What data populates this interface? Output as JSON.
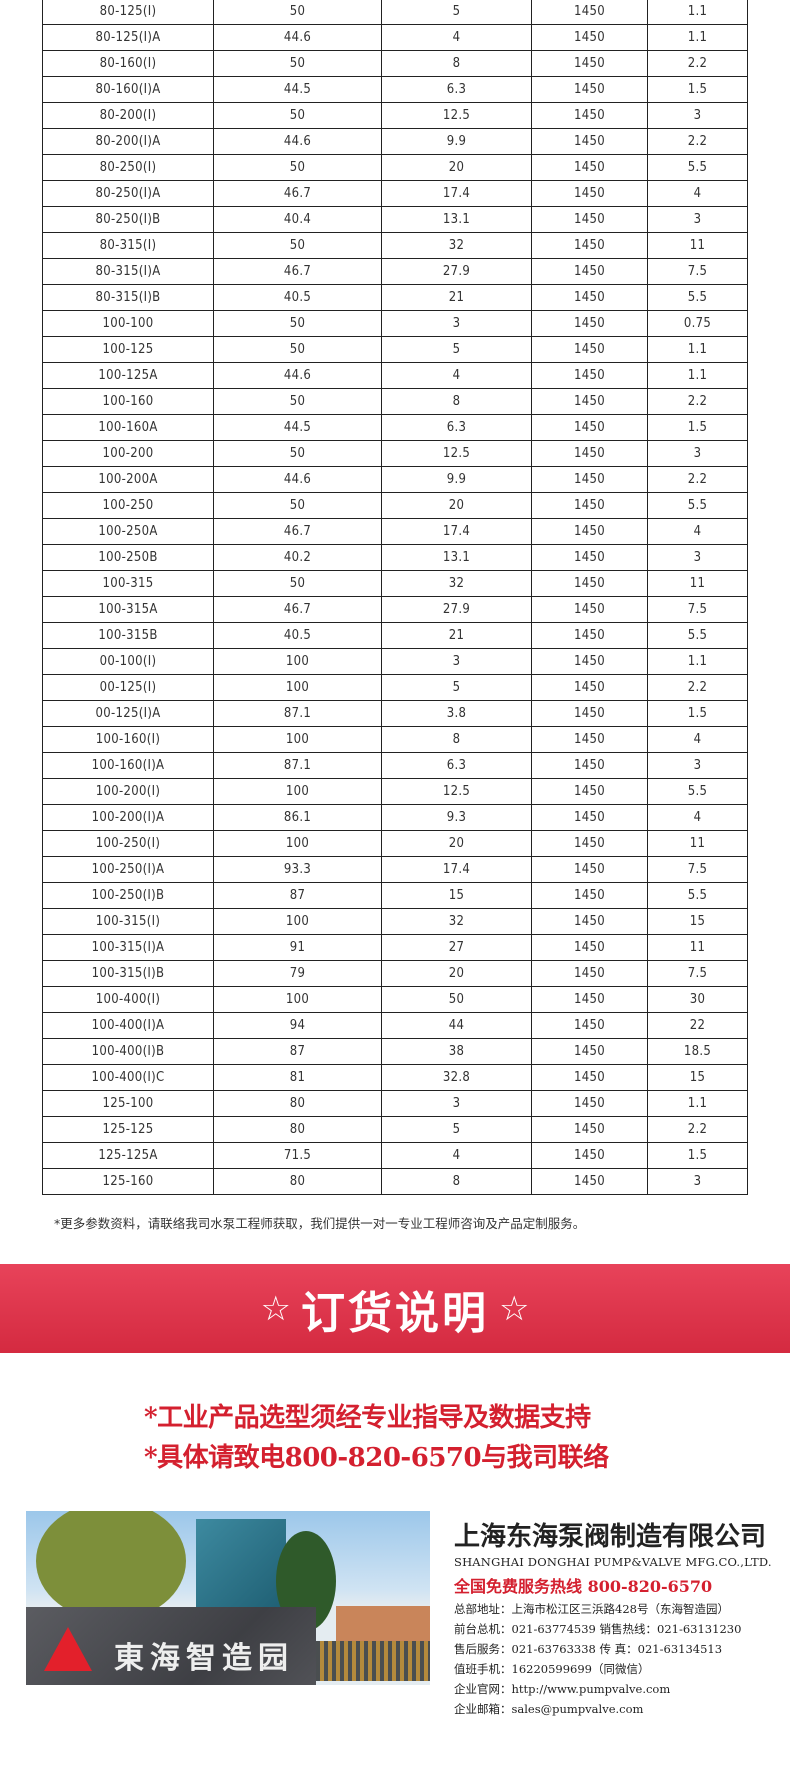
{
  "table": {
    "rows": [
      [
        "80-125(Ⅰ)",
        "50",
        "5",
        "1450",
        "1.1"
      ],
      [
        "80-125(Ⅰ)A",
        "44.6",
        "4",
        "1450",
        "1.1"
      ],
      [
        "80-160(Ⅰ)",
        "50",
        "8",
        "1450",
        "2.2"
      ],
      [
        "80-160(Ⅰ)A",
        "44.5",
        "6.3",
        "1450",
        "1.5"
      ],
      [
        "80-200(Ⅰ)",
        "50",
        "12.5",
        "1450",
        "3"
      ],
      [
        "80-200(Ⅰ)A",
        "44.6",
        "9.9",
        "1450",
        "2.2"
      ],
      [
        "80-250(Ⅰ)",
        "50",
        "20",
        "1450",
        "5.5"
      ],
      [
        "80-250(Ⅰ)A",
        "46.7",
        "17.4",
        "1450",
        "4"
      ],
      [
        "80-250(Ⅰ)B",
        "40.4",
        "13.1",
        "1450",
        "3"
      ],
      [
        "80-315(Ⅰ)",
        "50",
        "32",
        "1450",
        "11"
      ],
      [
        "80-315(Ⅰ)A",
        "46.7",
        "27.9",
        "1450",
        "7.5"
      ],
      [
        "80-315(Ⅰ)B",
        "40.5",
        "21",
        "1450",
        "5.5"
      ],
      [
        "100-100",
        "50",
        "3",
        "1450",
        "0.75"
      ],
      [
        "100-125",
        "50",
        "5",
        "1450",
        "1.1"
      ],
      [
        "100-125A",
        "44.6",
        "4",
        "1450",
        "1.1"
      ],
      [
        "100-160",
        "50",
        "8",
        "1450",
        "2.2"
      ],
      [
        "100-160A",
        "44.5",
        "6.3",
        "1450",
        "1.5"
      ],
      [
        "100-200",
        "50",
        "12.5",
        "1450",
        "3"
      ],
      [
        "100-200A",
        "44.6",
        "9.9",
        "1450",
        "2.2"
      ],
      [
        "100-250",
        "50",
        "20",
        "1450",
        "5.5"
      ],
      [
        "100-250A",
        "46.7",
        "17.4",
        "1450",
        "4"
      ],
      [
        "100-250B",
        "40.2",
        "13.1",
        "1450",
        "3"
      ],
      [
        "100-315",
        "50",
        "32",
        "1450",
        "11"
      ],
      [
        "100-315A",
        "46.7",
        "27.9",
        "1450",
        "7.5"
      ],
      [
        "100-315B",
        "40.5",
        "21",
        "1450",
        "5.5"
      ],
      [
        "00-100(Ⅰ)",
        "100",
        "3",
        "1450",
        "1.1"
      ],
      [
        "00-125(Ⅰ)",
        "100",
        "5",
        "1450",
        "2.2"
      ],
      [
        "00-125(Ⅰ)A",
        "87.1",
        "3.8",
        "1450",
        "1.5"
      ],
      [
        "100-160(Ⅰ)",
        "100",
        "8",
        "1450",
        "4"
      ],
      [
        "100-160(Ⅰ)A",
        "87.1",
        "6.3",
        "1450",
        "3"
      ],
      [
        "100-200(Ⅰ)",
        "100",
        "12.5",
        "1450",
        "5.5"
      ],
      [
        "100-200(Ⅰ)A",
        "86.1",
        "9.3",
        "1450",
        "4"
      ],
      [
        "100-250(Ⅰ)",
        "100",
        "20",
        "1450",
        "11"
      ],
      [
        "100-250(Ⅰ)A",
        "93.3",
        "17.4",
        "1450",
        "7.5"
      ],
      [
        "100-250(Ⅰ)B",
        "87",
        "15",
        "1450",
        "5.5"
      ],
      [
        "100-315(Ⅰ)",
        "100",
        "32",
        "1450",
        "15"
      ],
      [
        "100-315(Ⅰ)A",
        "91",
        "27",
        "1450",
        "11"
      ],
      [
        "100-315(Ⅰ)B",
        "79",
        "20",
        "1450",
        "7.5"
      ],
      [
        "100-400(Ⅰ)",
        "100",
        "50",
        "1450",
        "30"
      ],
      [
        "100-400(Ⅰ)A",
        "94",
        "44",
        "1450",
        "22"
      ],
      [
        "100-400(Ⅰ)B",
        "87",
        "38",
        "1450",
        "18.5"
      ],
      [
        "100-400(Ⅰ)C",
        "81",
        "32.8",
        "1450",
        "15"
      ],
      [
        "125-100",
        "80",
        "3",
        "1450",
        "1.1"
      ],
      [
        "125-125",
        "80",
        "5",
        "1450",
        "2.2"
      ],
      [
        "125-125A",
        "71.5",
        "4",
        "1450",
        "1.5"
      ],
      [
        "125-160",
        "80",
        "8",
        "1450",
        "3"
      ]
    ]
  },
  "footnote": "*更多参数资料，请联络我司水泵工程师获取，我们提供一对一专业工程师咨询及产品定制服务。",
  "banner": {
    "star_left": "☆",
    "title": "订货说明",
    "star_right": "☆",
    "color": "#d42a40"
  },
  "order_notes": [
    "*工业产品选型须经专业指导及数据支持",
    "*具体请致电800-820-6570与我司联络"
  ],
  "photo": {
    "sign_text": "東海智造园"
  },
  "company": {
    "name_cn": "上海东海泵阀制造有限公司",
    "name_en": "SHANGHAI DONGHAI PUMP&VALVE MFG.CO.,LTD.",
    "hotline": "全国免费服务热线  800-820-6570",
    "lines": [
      "总部地址：上海市松江区三浜路428号（东海智造园）",
      "前台总机：021-63774539   销售热线：021-63131230",
      "售后服务：021-63763338   传      真：021-63134513",
      "值班手机：16220599699（同微信）",
      "企业官网：http://www.pumpvalve.com",
      "企业邮箱：sales@pumpvalve.com"
    ],
    "accent_color": "#d4202f"
  }
}
